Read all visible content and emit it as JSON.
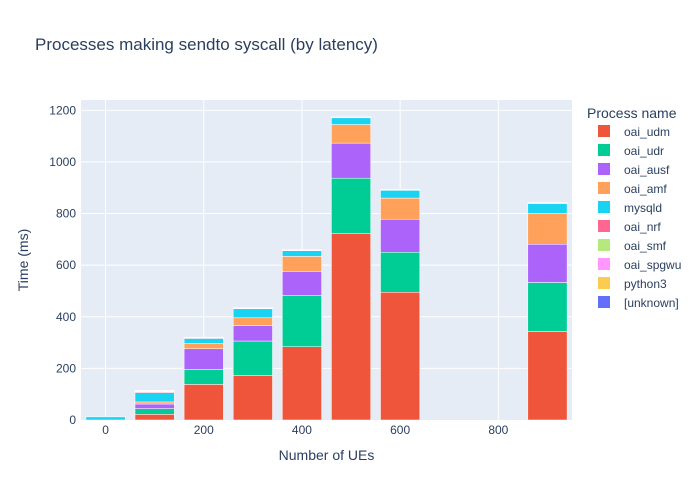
{
  "chart_data": {
    "type": "bar",
    "stacked": true,
    "title": "Processes making sendto syscall (by latency)",
    "xlabel": "Number of UEs",
    "ylabel": "Time (ms)",
    "x": [
      0,
      100,
      200,
      300,
      400,
      500,
      600,
      900
    ],
    "xlim": [
      -50,
      950
    ],
    "ylim": [
      0,
      1240
    ],
    "xticks": [
      0,
      200,
      400,
      600,
      800
    ],
    "yticks": [
      0,
      200,
      400,
      600,
      800,
      1000,
      1200
    ],
    "bar_width": 80,
    "grid": true,
    "legend": {
      "title": "Process name",
      "position": "right"
    },
    "series": [
      {
        "name": "oai_udm",
        "color": "#EF553B",
        "values": [
          0,
          22,
          138,
          173,
          284,
          722,
          495,
          343
        ]
      },
      {
        "name": "oai_udr",
        "color": "#00CC96",
        "values": [
          0,
          22,
          58,
          133,
          198,
          215,
          155,
          190
        ]
      },
      {
        "name": "oai_ausf",
        "color": "#AB63FA",
        "values": [
          0,
          18,
          80,
          60,
          94,
          136,
          128,
          148
        ]
      },
      {
        "name": "oai_amf",
        "color": "#FFA15A",
        "values": [
          0,
          8,
          20,
          30,
          58,
          72,
          82,
          120
        ]
      },
      {
        "name": "mysqld",
        "color": "#19D3F3",
        "values": [
          12,
          36,
          20,
          35,
          22,
          26,
          30,
          38
        ]
      },
      {
        "name": "oai_nrf",
        "color": "#FF6692",
        "values": [
          0,
          3,
          3,
          2,
          2,
          2,
          2,
          2
        ]
      },
      {
        "name": "oai_smf",
        "color": "#B6E880",
        "values": [
          0,
          2,
          1,
          1,
          1,
          1,
          1,
          1
        ]
      },
      {
        "name": "oai_spgwu",
        "color": "#FF97FF",
        "values": [
          0,
          2,
          1,
          1,
          1,
          1,
          1,
          1
        ]
      },
      {
        "name": "python3",
        "color": "#FECB52",
        "values": [
          0,
          1,
          0,
          0,
          0,
          0,
          0,
          0
        ]
      },
      {
        "name": "[unknown]",
        "color": "#636EFA",
        "values": [
          0,
          1,
          0,
          0,
          0,
          0,
          0,
          0
        ]
      }
    ]
  }
}
